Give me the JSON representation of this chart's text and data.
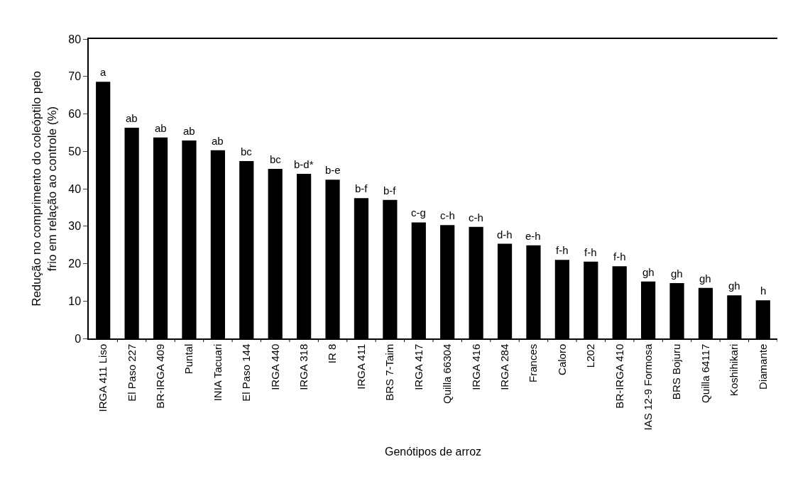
{
  "chart_data": {
    "type": "bar",
    "xlabel": "Genótipos de arroz",
    "ylabel": "Redução no comprimento do coleóptilo pelo\nfrio em relação ao controle (%)",
    "categories": [
      "IRGA 411 Liso",
      "El Paso 227",
      "BR-IRGA 409",
      "Puntal",
      "INIA Tacuari",
      "El Paso 144",
      "IRGA 440",
      "IRGA 318",
      "IR 8",
      "IRGA 411",
      "BRS 7-Taim",
      "IRGA 417",
      "Quilla 66304",
      "IRGA 416",
      "IRGA 284",
      "Frances",
      "Caloro",
      "L202",
      "BR-IRGA 410",
      "IAS 12-9 Formosa",
      "BRS Bojuru",
      "Quilla 64117",
      "Koshihikari",
      "Diamante"
    ],
    "values": [
      68.6,
      56.3,
      53.7,
      52.9,
      50.3,
      47.4,
      45.3,
      44.0,
      42.4,
      37.5,
      37.0,
      31,
      30.3,
      29.8,
      25.3,
      24.9,
      21,
      20.5,
      19.3,
      15.2,
      14.8,
      13.5,
      11.5,
      10.2
    ],
    "color": "#000000",
    "ylim": [
      0,
      80
    ],
    "yticks": [
      0,
      10,
      20,
      30,
      40,
      50,
      60,
      70,
      80
    ],
    "grid": false,
    "annotations": [
      {
        "text": "a",
        "x": "IRGA 411 Liso",
        "y": 68.6
      },
      {
        "text": "ab",
        "x": "El Paso 227",
        "y": 56.3
      },
      {
        "text": "ab",
        "x": "BR-IRGA 409",
        "y": 53.7
      },
      {
        "text": "ab",
        "x": "Puntal",
        "y": 52.9
      },
      {
        "text": "ab",
        "x": "INIA Tacuari",
        "y": 50.3
      },
      {
        "text": "bc",
        "x": "El Paso 144",
        "y": 47.4
      },
      {
        "text": "bc",
        "x": "IRGA 440",
        "y": 45.3
      },
      {
        "text": "b-d*",
        "x": "IRGA 318",
        "y": 44.0
      },
      {
        "text": "b-e",
        "x": "IR 8",
        "y": 42.4
      },
      {
        "text": "b-f",
        "x": "IRGA 411",
        "y": 37.5
      },
      {
        "text": "b-f",
        "x": "BRS 7-Taim",
        "y": 37.0
      },
      {
        "text": "c-g",
        "x": "IRGA 417",
        "y": 31
      },
      {
        "text": "c-h",
        "x": "Quilla 66304",
        "y": 30.3
      },
      {
        "text": "c-h",
        "x": "IRGA 416",
        "y": 29.8
      },
      {
        "text": "d-h",
        "x": "IRGA 284",
        "y": 25.3
      },
      {
        "text": "e-h",
        "x": "Frances",
        "y": 24.9
      },
      {
        "text": "f-h",
        "x": "Caloro",
        "y": 21
      },
      {
        "text": "f-h",
        "x": "L202",
        "y": 20.5
      },
      {
        "text": "f-h",
        "x": "BR-IRGA 410",
        "y": 19.3
      },
      {
        "text": "gh",
        "x": "IAS 12-9 Formosa",
        "y": 15.2
      },
      {
        "text": "gh",
        "x": "BRS Bojuru",
        "y": 14.8
      },
      {
        "text": "gh",
        "x": "Quilla 64117",
        "y": 13.5
      },
      {
        "text": "gh",
        "x": "Koshihikari",
        "y": 11.5
      },
      {
        "text": "h",
        "x": "Diamante",
        "y": 10.2
      }
    ]
  }
}
